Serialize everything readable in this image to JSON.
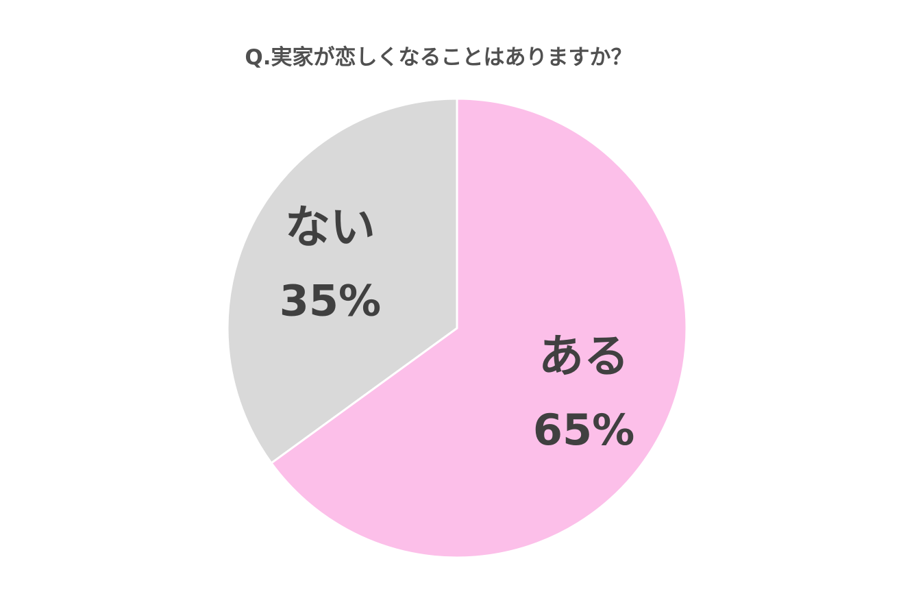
{
  "chart_data": {
    "type": "pie",
    "title": "Q.実家が恋しくなることはありますか？",
    "slices": [
      {
        "label": "ある",
        "value": 65,
        "value_label": "65%",
        "color": "#fcbfe9"
      },
      {
        "label": "ない",
        "value": 35,
        "value_label": "35%",
        "color": "#d9d9d9"
      }
    ],
    "start": "12 o'clock",
    "direction": "clockwise",
    "separator_color": "#ffffff",
    "label_color": "#404040"
  }
}
